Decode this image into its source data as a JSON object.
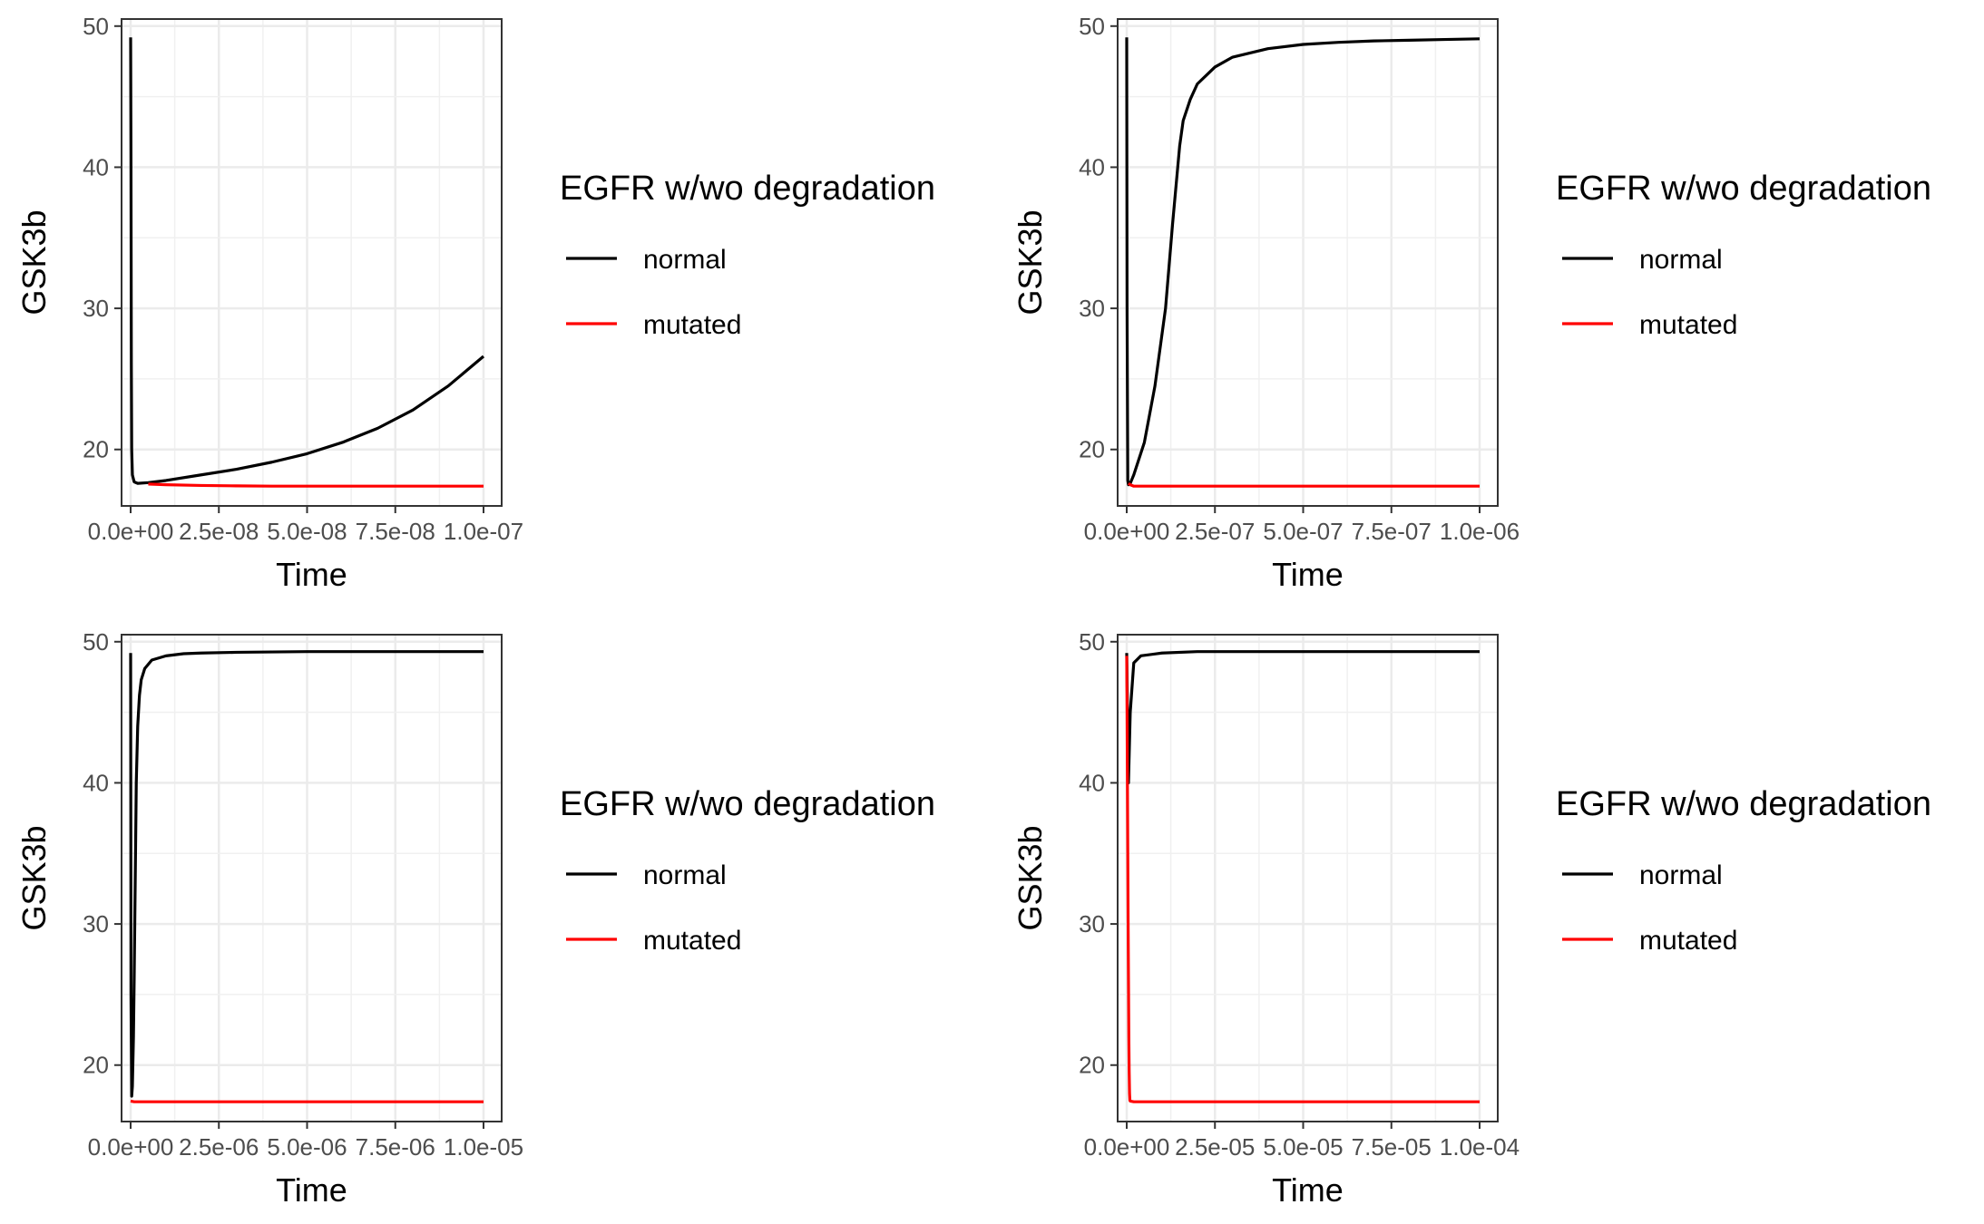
{
  "chart_data": [
    {
      "type": "line",
      "xlabel": "Time",
      "ylabel": "GSK3b",
      "xlim": [
        0,
        1e-07
      ],
      "ylim": [
        16,
        50.5
      ],
      "x_tick_labels": [
        "0.0e+00",
        "2.5e-08",
        "5.0e-08",
        "7.5e-08",
        "1.0e-07"
      ],
      "y_ticks": [
        20,
        30,
        40,
        50
      ],
      "y_tick_labels": [
        "20",
        "30",
        "40",
        "50"
      ],
      "grid": true,
      "legend": {
        "title": "EGFR w/wo degradation",
        "position": "right",
        "entries": [
          "normal",
          "mutated"
        ]
      },
      "series": [
        {
          "name": "normal",
          "color": "#000000",
          "x": [
            0,
            1e-10,
            2e-10,
            3e-10,
            5e-10,
            1e-09,
            2e-09,
            5e-09,
            1e-08,
            2e-08,
            3e-08,
            4e-08,
            5e-08,
            6e-08,
            7e-08,
            8e-08,
            9e-08,
            1e-07
          ],
          "y": [
            49.2,
            40,
            26,
            20,
            18.2,
            17.7,
            17.6,
            17.65,
            17.8,
            18.2,
            18.6,
            19.1,
            19.7,
            20.5,
            21.5,
            22.8,
            24.5,
            26.6
          ]
        },
        {
          "name": "mutated",
          "color": "#ff0000",
          "x": [
            5e-09,
            1e-08,
            2e-08,
            3e-08,
            4e-08,
            5e-08,
            6e-08,
            7e-08,
            8e-08,
            9e-08,
            1e-07
          ],
          "y": [
            17.55,
            17.5,
            17.45,
            17.42,
            17.4,
            17.4,
            17.4,
            17.4,
            17.4,
            17.4,
            17.4
          ]
        }
      ]
    },
    {
      "type": "line",
      "xlabel": "Time",
      "ylabel": "GSK3b",
      "xlim": [
        0,
        1e-06
      ],
      "ylim": [
        16,
        50.5
      ],
      "x_tick_labels": [
        "0.0e+00",
        "2.5e-07",
        "5.0e-07",
        "7.5e-07",
        "1.0e-06"
      ],
      "y_ticks": [
        20,
        30,
        40,
        50
      ],
      "y_tick_labels": [
        "20",
        "30",
        "40",
        "50"
      ],
      "grid": true,
      "legend": {
        "title": "EGFR w/wo degradation",
        "position": "right",
        "entries": [
          "normal",
          "mutated"
        ]
      },
      "series": [
        {
          "name": "normal",
          "color": "#000000",
          "x": [
            0,
            1e-09,
            3e-09,
            5e-09,
            1e-08,
            2e-08,
            5e-08,
            8e-08,
            1.1e-07,
            1.3e-07,
            1.5e-07,
            1.6e-07,
            1.8e-07,
            2e-07,
            2.5e-07,
            3e-07,
            4e-07,
            5e-07,
            6e-07,
            7e-07,
            8e-07,
            9e-07,
            1e-06
          ],
          "y": [
            49.2,
            30,
            17.8,
            17.5,
            17.6,
            18.2,
            20.5,
            24.5,
            30,
            36,
            41.5,
            43.3,
            44.8,
            45.9,
            47.1,
            47.8,
            48.4,
            48.7,
            48.85,
            48.95,
            49.0,
            49.05,
            49.1
          ]
        },
        {
          "name": "mutated",
          "color": "#ff0000",
          "x": [
            5e-09,
            1e-08,
            2e-08,
            5e-08,
            1e-07,
            2e-07,
            3e-07,
            4e-07,
            5e-07,
            6e-07,
            7e-07,
            8e-07,
            9e-07,
            1e-06
          ],
          "y": [
            17.6,
            17.5,
            17.4,
            17.4,
            17.4,
            17.4,
            17.4,
            17.4,
            17.4,
            17.4,
            17.4,
            17.4,
            17.4,
            17.4
          ]
        }
      ]
    },
    {
      "type": "line",
      "xlabel": "Time",
      "ylabel": "GSK3b",
      "xlim": [
        0,
        1e-05
      ],
      "ylim": [
        16,
        50.5
      ],
      "x_tick_labels": [
        "0.0e+00",
        "2.5e-06",
        "5.0e-06",
        "7.5e-06",
        "1.0e-05"
      ],
      "y_ticks": [
        20,
        30,
        40,
        50
      ],
      "y_tick_labels": [
        "20",
        "30",
        "40",
        "50"
      ],
      "grid": true,
      "legend": {
        "title": "EGFR w/wo degradation",
        "position": "right",
        "entries": [
          "normal",
          "mutated"
        ]
      },
      "series": [
        {
          "name": "normal",
          "color": "#000000",
          "x": [
            0,
            1e-08,
            3e-08,
            5e-08,
            8e-08,
            1e-07,
            1.3e-07,
            1.6e-07,
            2e-07,
            2.5e-07,
            3e-07,
            4e-07,
            6e-07,
            1e-06,
            1.5e-06,
            2e-06,
            3e-06,
            5e-06,
            7.5e-06,
            1e-05
          ],
          "y": [
            49.2,
            25,
            17.8,
            18.5,
            22,
            26,
            33,
            40,
            44,
            46.2,
            47.3,
            48.1,
            48.7,
            49.0,
            49.15,
            49.2,
            49.25,
            49.3,
            49.3,
            49.3
          ]
        },
        {
          "name": "mutated",
          "color": "#ff0000",
          "x": [
            0,
            1e-07,
            5e-07,
            1e-06,
            2.5e-06,
            5e-06,
            7.5e-06,
            1e-05
          ],
          "y": [
            17.45,
            17.4,
            17.4,
            17.4,
            17.4,
            17.4,
            17.4,
            17.4
          ]
        }
      ]
    },
    {
      "type": "line",
      "xlabel": "Time",
      "ylabel": "GSK3b",
      "xlim": [
        0,
        0.0001
      ],
      "ylim": [
        16,
        50.5
      ],
      "x_tick_labels": [
        "0.0e+00",
        "2.5e-05",
        "5.0e-05",
        "7.5e-05",
        "1.0e-04"
      ],
      "y_ticks": [
        20,
        30,
        40,
        50
      ],
      "y_tick_labels": [
        "20",
        "30",
        "40",
        "50"
      ],
      "grid": true,
      "legend": {
        "title": "EGFR w/wo degradation",
        "position": "right",
        "entries": [
          "normal",
          "mutated"
        ]
      },
      "series": [
        {
          "name": "normal",
          "color": "#000000",
          "x": [
            0,
            5e-07,
            1e-06,
            2e-06,
            4e-06,
            1e-05,
            2e-05,
            5e-05,
            0.0001
          ],
          "y": [
            49.2,
            40,
            45,
            48.5,
            49.0,
            49.2,
            49.3,
            49.3,
            49.3
          ]
        },
        {
          "name": "mutated",
          "color": "#ff0000",
          "x": [
            0,
            1e-07,
            2e-07,
            3e-07,
            4e-07,
            5e-07,
            6e-07,
            7e-07,
            8e-07,
            9e-07,
            1e-06,
            2e-06,
            5e-06,
            2.5e-05,
            5e-05,
            7.5e-05,
            0.0001
          ],
          "y": [
            49.0,
            45,
            40,
            35,
            30,
            26,
            22,
            19.5,
            18,
            17.5,
            17.45,
            17.4,
            17.4,
            17.4,
            17.4,
            17.4,
            17.4
          ]
        }
      ]
    }
  ]
}
